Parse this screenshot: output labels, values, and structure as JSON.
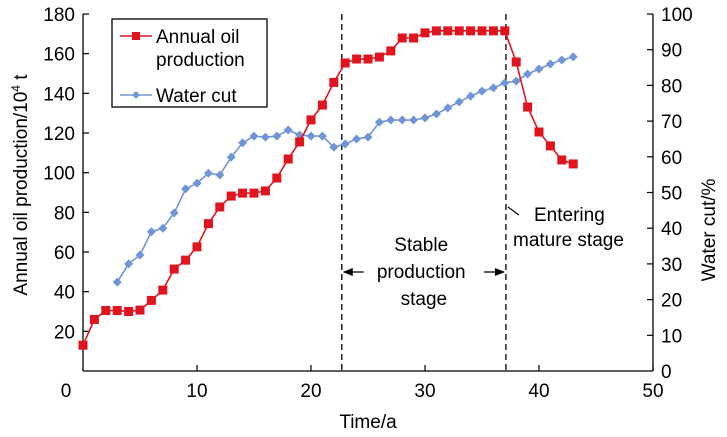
{
  "chart_data": {
    "type": "line",
    "title": "",
    "xlabel": "Time/a",
    "ylabel_left": "Annual oil production/10",
    "ylabel_left_sup": "4",
    "ylabel_left_unit": " t",
    "ylabel_right": "Water cut/%",
    "xlim": [
      0,
      50
    ],
    "ylim_left": [
      0,
      180
    ],
    "ylim_right": [
      0,
      100
    ],
    "xticks": [
      "0",
      "10",
      "20",
      "30",
      "40",
      "50"
    ],
    "yticks_left": [
      "20",
      "40",
      "60",
      "80",
      "100",
      "120",
      "140",
      "160",
      "180"
    ],
    "yticks_right": [
      "0",
      "10",
      "20",
      "30",
      "40",
      "50",
      "60",
      "70",
      "80",
      "90",
      "100"
    ],
    "grid": false,
    "legend_position": "top-left",
    "series": [
      {
        "name": "Annual oil production",
        "legend_lines": [
          "Annual oil",
          "production"
        ],
        "axis": "left",
        "color": "#e0141e",
        "marker": "square",
        "x": [
          0,
          1,
          2,
          3,
          4,
          5,
          6,
          7,
          8,
          9,
          10,
          11,
          12,
          13,
          14,
          15,
          16,
          17,
          18,
          19,
          20,
          21,
          22,
          23,
          24,
          25,
          26,
          27,
          28,
          29,
          30,
          31,
          32,
          33,
          34,
          35,
          36,
          37,
          38,
          39,
          40,
          41,
          42,
          43
        ],
        "values": [
          13,
          26,
          30.5,
          30.5,
          30,
          30.7,
          35.6,
          40.8,
          51.4,
          55.9,
          62.6,
          74.3,
          82.7,
          88.2,
          89.7,
          89.7,
          90.8,
          97.3,
          106.9,
          115.5,
          126.6,
          134.1,
          145.5,
          155.3,
          157.3,
          157.3,
          158.3,
          161.4,
          167.9,
          167.9,
          170.5,
          171.5,
          171.5,
          171.5,
          171.5,
          171.5,
          171.5,
          171.5,
          155.8,
          133.1,
          120.5,
          113.5,
          106.4,
          104.4
        ]
      },
      {
        "name": "Water cut",
        "legend_lines": [
          "Water cut"
        ],
        "axis": "right",
        "color": "#7095d6",
        "marker": "diamond",
        "x": [
          3,
          4,
          5,
          6,
          7,
          8,
          9,
          10,
          11,
          12,
          13,
          14,
          15,
          16,
          17,
          18,
          19,
          20,
          21,
          22,
          23,
          24,
          25,
          26,
          27,
          28,
          29,
          30,
          31,
          32,
          33,
          34,
          35,
          36,
          37,
          38,
          39,
          40,
          41,
          42,
          43
        ],
        "values": [
          24.9,
          30,
          32.5,
          39,
          40,
          44.3,
          51,
          52.6,
          55.4,
          54.9,
          59.9,
          63.9,
          65.8,
          65.5,
          65.8,
          67.5,
          66.1,
          65.8,
          65.8,
          62.7,
          63.6,
          65,
          65.5,
          69.7,
          70.3,
          70.3,
          70.3,
          70.9,
          72,
          73.7,
          75.4,
          77,
          78.4,
          79.3,
          80.7,
          81.2,
          83.2,
          84.6,
          86,
          87.1,
          88
        ]
      }
    ],
    "annotations": [
      {
        "type": "vline",
        "x": 22.7,
        "style": "dashed"
      },
      {
        "type": "vline",
        "x": 37.1,
        "style": "dashed"
      },
      {
        "type": "span-label",
        "from": 22.7,
        "to": 37.1,
        "lines": [
          "Stable",
          "production",
          "stage"
        ]
      },
      {
        "type": "label",
        "x": 37.1,
        "lines": [
          "Entering",
          "mature stage"
        ]
      }
    ]
  }
}
